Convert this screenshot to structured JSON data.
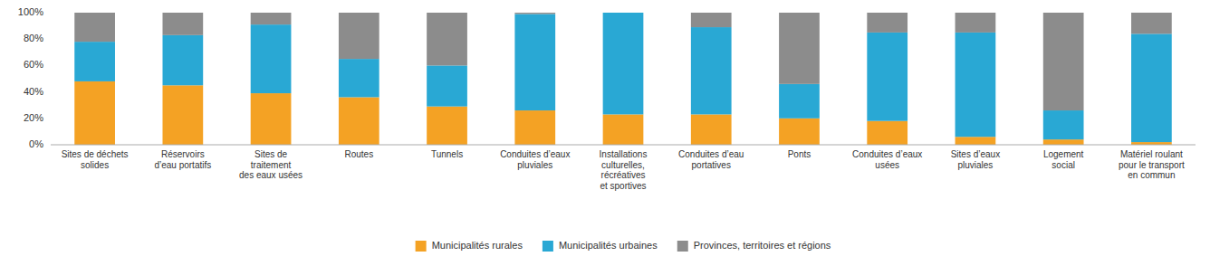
{
  "chart_data": {
    "type": "bar",
    "stacked": true,
    "categories": [
      "Sites de déchets\nsolides",
      "Réservoirs\nd’eau portatifs",
      "Sites de\ntraitement\ndes eaux usées",
      "Routes",
      "Tunnels",
      "Conduites d’eaux\npluviales",
      "Installations\nculturelles,\nrécréatives\net sportives",
      "Conduites d’eau\nportatives",
      "Ponts",
      "Conduites d’eaux\nusées",
      "Sites d’eaux\npluviales",
      "Logement\nsocial",
      "Matériel roulant\npour le transport\nen commun"
    ],
    "series": [
      {
        "name": "Municipalités rurales",
        "color": "#f4a224",
        "values": [
          48,
          45,
          39,
          36,
          29,
          26,
          23,
          23,
          20,
          18,
          6,
          4,
          2
        ]
      },
      {
        "name": "Municipalités urbaines",
        "color": "#29a8d4",
        "values": [
          30,
          38,
          52,
          29,
          31,
          73,
          77,
          66,
          26,
          67,
          79,
          22,
          82
        ]
      },
      {
        "name": "Provinces, territoires et régions",
        "color": "#8c8c8c",
        "values": [
          22,
          17,
          9,
          35,
          40,
          1,
          0,
          11,
          54,
          15,
          15,
          74,
          16
        ]
      }
    ],
    "ylim": [
      0,
      100
    ],
    "yticks": [
      {
        "value": 0,
        "label": "0%"
      },
      {
        "value": 20,
        "label": "20%"
      },
      {
        "value": 40,
        "label": "40%"
      },
      {
        "value": 60,
        "label": "60%"
      },
      {
        "value": 80,
        "label": "80%"
      },
      {
        "value": 100,
        "label": "100%"
      }
    ],
    "grid": false,
    "legend": "bottom"
  }
}
